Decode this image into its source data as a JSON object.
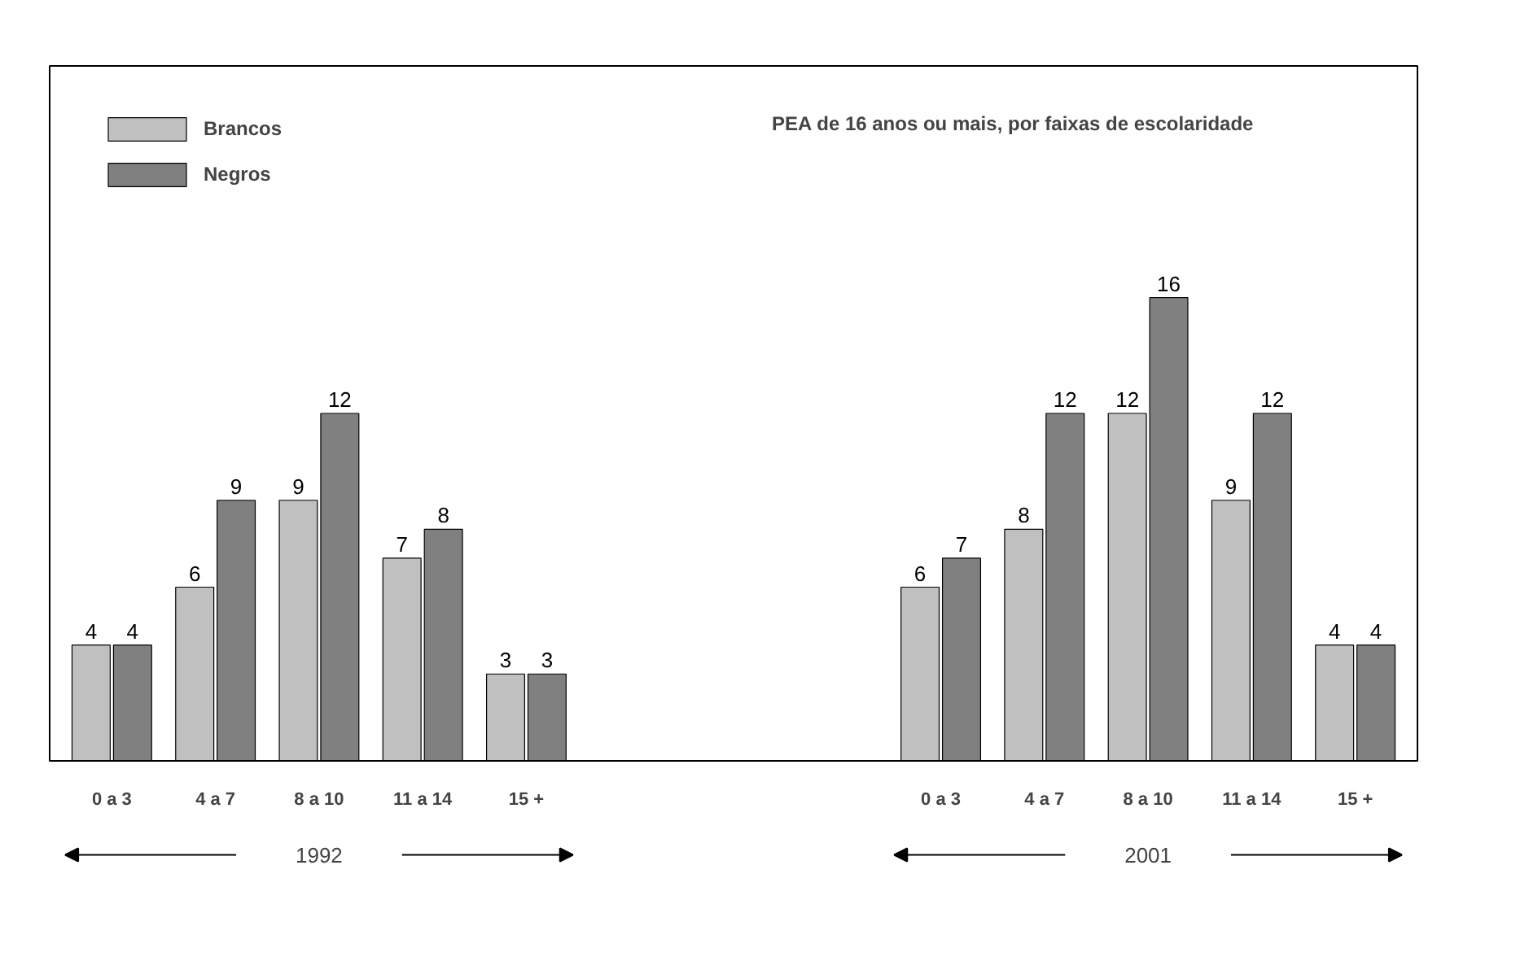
{
  "chart_data": {
    "type": "bar",
    "title": "PEA de 16 anos ou mais, por faixas de escolaridade",
    "categories": [
      "0 a 3",
      "4 a 7",
      "8 a 10",
      "11 a 14",
      "15 +",
      null,
      null,
      null,
      "0 a 3",
      "4 a 7",
      "8 a 10",
      "11 a 14",
      "15 +"
    ],
    "series": [
      {
        "name": "Brancos",
        "color": "#c0c0c0",
        "values": [
          4,
          6,
          9,
          7,
          3,
          null,
          null,
          null,
          6,
          8,
          12,
          9,
          4
        ]
      },
      {
        "name": "Negros",
        "color": "#808080",
        "values": [
          4,
          9,
          12,
          8,
          3,
          null,
          null,
          null,
          7,
          12,
          16,
          12,
          4
        ]
      }
    ],
    "data_labels": true,
    "legend": "top left",
    "grid": false,
    "annotations": [
      "1992",
      "2001"
    ]
  }
}
